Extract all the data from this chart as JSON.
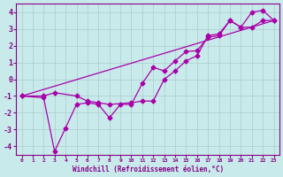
{
  "xlabel": "Windchill (Refroidissement éolien,°C)",
  "xlim": [
    -0.5,
    23.5
  ],
  "ylim": [
    -4.5,
    4.5
  ],
  "yticks": [
    -4,
    -3,
    -2,
    -1,
    0,
    1,
    2,
    3,
    4
  ],
  "xticks": [
    0,
    1,
    2,
    3,
    4,
    5,
    6,
    7,
    8,
    9,
    10,
    11,
    12,
    13,
    14,
    15,
    16,
    17,
    18,
    19,
    20,
    21,
    22,
    23
  ],
  "bg_color": "#c8eaea",
  "line_color": "#aa00aa",
  "grid_color": "#aacccc",
  "spine_color": "#880088",
  "line1_x": [
    0,
    23
  ],
  "line1_y": [
    -1.0,
    3.5
  ],
  "line2_x": [
    0,
    2,
    3,
    4,
    5,
    6,
    7,
    8,
    9,
    10,
    11,
    12,
    13,
    14,
    15,
    16,
    17,
    18,
    19,
    20,
    21,
    22,
    23
  ],
  "line2_y": [
    -1.0,
    -1.1,
    -4.3,
    -2.9,
    -1.5,
    -1.4,
    -1.5,
    -2.3,
    -1.5,
    -1.5,
    -0.25,
    0.7,
    0.5,
    1.1,
    1.65,
    1.7,
    2.5,
    2.6,
    3.5,
    3.1,
    4.0,
    4.1,
    3.5
  ],
  "line3_x": [
    0,
    2,
    3,
    5,
    6,
    7,
    8,
    10,
    11,
    12,
    13,
    14,
    15,
    16,
    17,
    18,
    19,
    20,
    21,
    22,
    23
  ],
  "line3_y": [
    -1.0,
    -1.0,
    -0.8,
    -1.0,
    -1.3,
    -1.4,
    -1.5,
    -1.4,
    -1.3,
    -1.3,
    0.0,
    0.5,
    1.1,
    1.4,
    2.6,
    2.7,
    3.5,
    3.1,
    3.1,
    3.5,
    3.5
  ],
  "marker": "D",
  "markersize": 2.5,
  "linewidth": 0.9
}
